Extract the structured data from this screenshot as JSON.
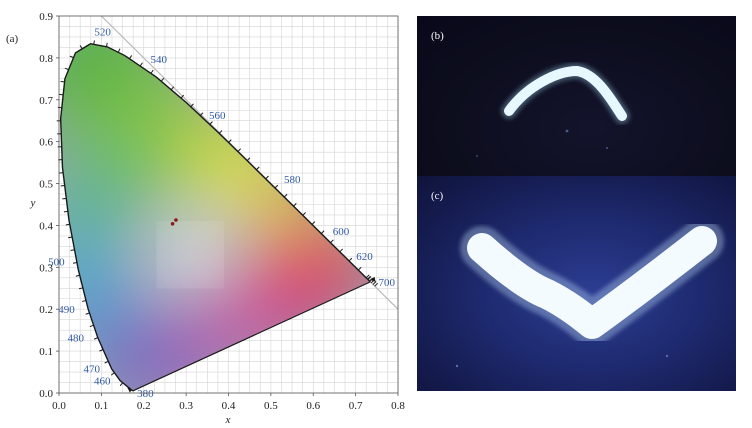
{
  "panels": {
    "a": {
      "label": "(a)"
    },
    "b": {
      "label": "(b)"
    },
    "c": {
      "label": "(c)"
    }
  },
  "chart_data": {
    "type": "scatter",
    "title": "",
    "xlabel": "x",
    "ylabel": "y",
    "xlim": [
      0.0,
      0.8
    ],
    "ylim": [
      0.0,
      0.9
    ],
    "grid": true,
    "x_ticks": [
      "0.0",
      "0.1",
      "0.2",
      "0.3",
      "0.4",
      "0.5",
      "0.6",
      "0.7",
      "0.8"
    ],
    "y_ticks": [
      "0.0",
      "0.1",
      "0.2",
      "0.3",
      "0.4",
      "0.5",
      "0.6",
      "0.7",
      "0.8",
      "0.9"
    ],
    "spectral_locus": {
      "wavelengths_nm": [
        380,
        460,
        470,
        480,
        490,
        500,
        520,
        540,
        560,
        580,
        600,
        620,
        700
      ],
      "wavelength_labels": [
        "380",
        "460",
        "470",
        "480",
        "490",
        "500",
        "520",
        "540",
        "560",
        "580",
        "600",
        "620",
        "700"
      ],
      "locus_points": [
        [
          0.1741,
          0.005
        ],
        [
          0.144,
          0.0297
        ],
        [
          0.1241,
          0.0578
        ],
        [
          0.0913,
          0.1327
        ],
        [
          0.0687,
          0.2007
        ],
        [
          0.0454,
          0.295
        ],
        [
          0.0235,
          0.4127
        ],
        [
          0.0082,
          0.5384
        ],
        [
          0.0039,
          0.6548
        ],
        [
          0.0139,
          0.7502
        ],
        [
          0.0389,
          0.812
        ],
        [
          0.0743,
          0.8338
        ],
        [
          0.1142,
          0.8262
        ],
        [
          0.1547,
          0.8059
        ],
        [
          0.2296,
          0.7543
        ],
        [
          0.3016,
          0.6923
        ],
        [
          0.3731,
          0.6245
        ],
        [
          0.4441,
          0.5547
        ],
        [
          0.5125,
          0.4866
        ],
        [
          0.5752,
          0.4242
        ],
        [
          0.627,
          0.3725
        ],
        [
          0.6658,
          0.334
        ],
        [
          0.6915,
          0.3083
        ],
        [
          0.7347,
          0.2653
        ]
      ]
    },
    "series": [
      {
        "values": [
          [
            0.268,
            0.404
          ],
          [
            0.276,
            0.413
          ]
        ],
        "color": "#8b1a1a"
      }
    ]
  }
}
